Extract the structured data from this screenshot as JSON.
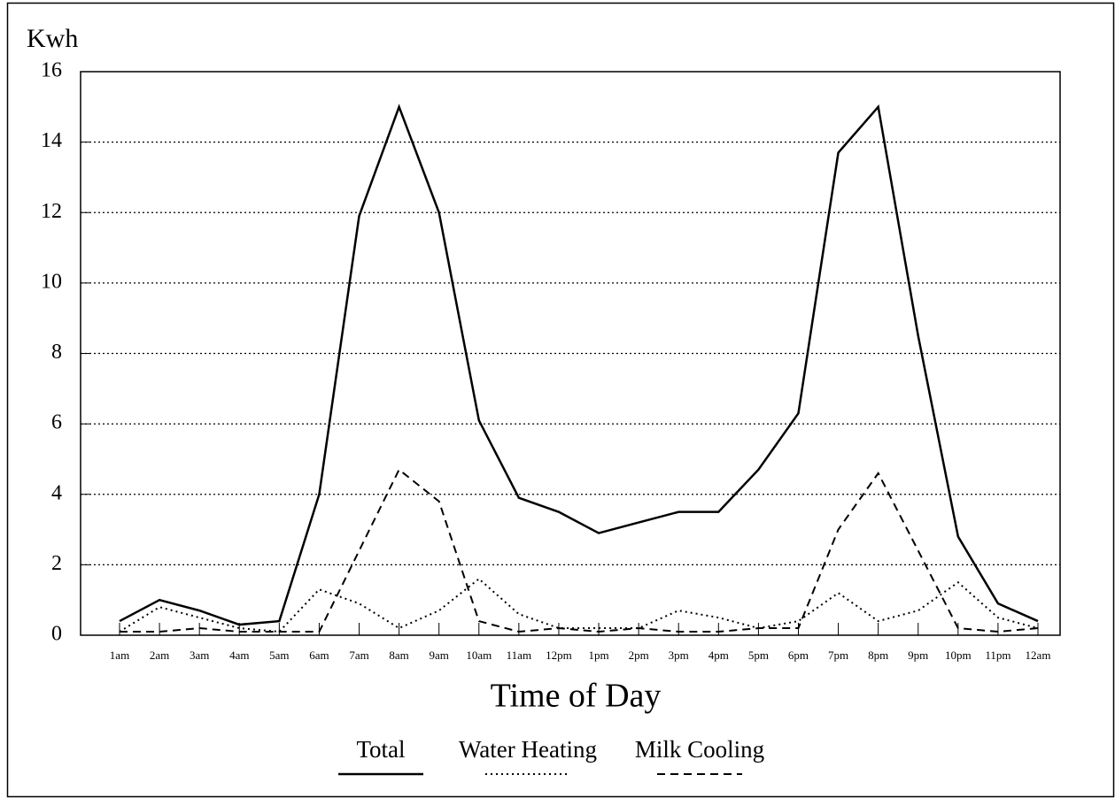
{
  "chart_data": {
    "type": "line",
    "ylabel": "Kwh",
    "xlabel": "Time of Day",
    "categories": [
      "1am",
      "2am",
      "3am",
      "4am",
      "5am",
      "6am",
      "7am",
      "8am",
      "9am",
      "10am",
      "11am",
      "12pm",
      "1pm",
      "2pm",
      "3pm",
      "4pm",
      "5pm",
      "6pm",
      "7pm",
      "8pm",
      "9pm",
      "10pm",
      "11pm",
      "12am"
    ],
    "series": [
      {
        "name": "Total",
        "color": "#000000",
        "dash": "solid",
        "values": [
          0.4,
          1.0,
          0.7,
          0.3,
          0.4,
          4.0,
          11.9,
          15,
          12,
          6.1,
          3.9,
          3.5,
          2.9,
          3.2,
          3.5,
          3.5,
          4.7,
          6.3,
          13.7,
          15,
          8.5,
          2.8,
          0.9,
          0.4
        ]
      },
      {
        "name": "Water Heating",
        "color": "#000000",
        "dash": "dotted",
        "values": [
          0.1,
          0.8,
          0.5,
          0.2,
          0.1,
          1.3,
          0.9,
          0.2,
          0.7,
          1.6,
          0.6,
          0.2,
          0.2,
          0.2,
          0.7,
          0.5,
          0.2,
          0.4,
          1.2,
          0.4,
          0.7,
          1.5,
          0.5,
          0.2
        ]
      },
      {
        "name": "Milk Cooling",
        "color": "#000000",
        "dash": "dashed",
        "values": [
          0.1,
          0.1,
          0.2,
          0.1,
          0.1,
          0.1,
          2.4,
          4.7,
          3.8,
          0.4,
          0.1,
          0.2,
          0.1,
          0.2,
          0.1,
          0.1,
          0.2,
          0.2,
          3.0,
          4.6,
          2.4,
          0.2,
          0.1,
          0.2
        ]
      }
    ],
    "ylim": [
      0,
      16
    ],
    "yticks": [
      0,
      2,
      4,
      6,
      8,
      10,
      12,
      14,
      16
    ],
    "grid": true,
    "legend": "bottom"
  }
}
